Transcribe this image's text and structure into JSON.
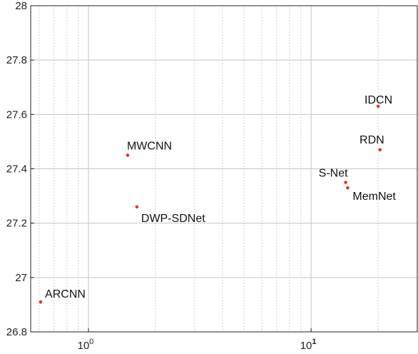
{
  "chart_data": {
    "type": "scatter",
    "title": "",
    "xlabel": "",
    "ylabel": "",
    "x_scale": "log",
    "xlim": [
      0.55,
      30
    ],
    "ylim": [
      26.8,
      28
    ],
    "x_ticks": [
      {
        "value": 1,
        "label": "10",
        "exp": "0"
      },
      {
        "value": 10,
        "label": "10",
        "exp": "1"
      }
    ],
    "y_ticks": [
      {
        "value": 26.8,
        "label": "26.8"
      },
      {
        "value": 27,
        "label": "27"
      },
      {
        "value": 27.2,
        "label": "27.2"
      },
      {
        "value": 27.4,
        "label": "27.4"
      },
      {
        "value": 27.6,
        "label": "27.6"
      },
      {
        "value": 27.8,
        "label": "27.8"
      },
      {
        "value": 28,
        "label": "28"
      }
    ],
    "grid": true,
    "marker_color": "#e8332a",
    "points": [
      {
        "label": "ARCNN",
        "x": 0.61,
        "y": 26.91,
        "anchor": "right-up"
      },
      {
        "label": "MWCNN",
        "x": 1.5,
        "y": 27.45,
        "anchor": "up"
      },
      {
        "label": "DWP-SDNet",
        "x": 1.65,
        "y": 27.26,
        "anchor": "right-down"
      },
      {
        "label": "IDCN",
        "x": 20.0,
        "y": 27.63,
        "anchor": "up"
      },
      {
        "label": "RDN",
        "x": 20.4,
        "y": 27.47,
        "anchor": "left-up"
      },
      {
        "label": "S-Net",
        "x": 14.3,
        "y": 27.35,
        "anchor": "left-up"
      },
      {
        "label": "MemNet",
        "x": 14.6,
        "y": 27.33,
        "anchor": "right-down"
      }
    ]
  }
}
